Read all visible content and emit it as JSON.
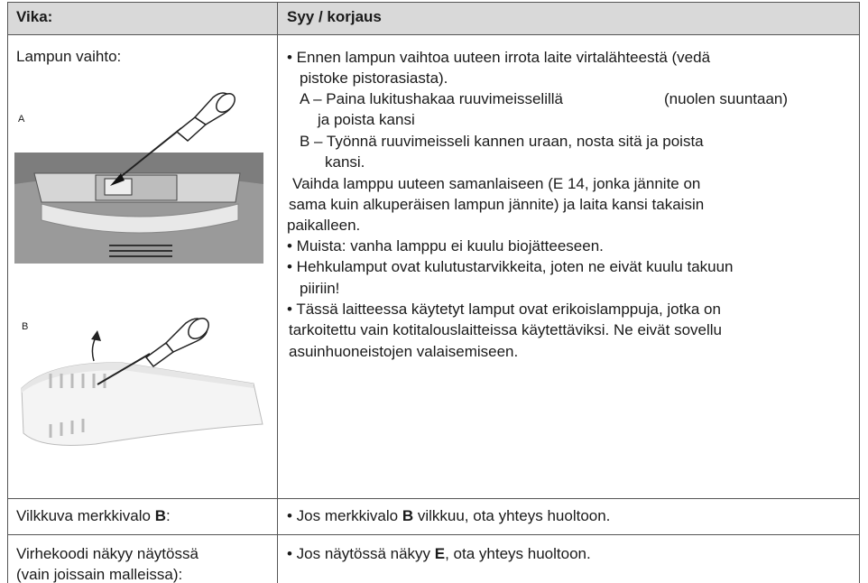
{
  "header": {
    "cells": [
      "Vika:",
      "Syy / korjaus"
    ]
  },
  "rows": [
    {
      "fault": "Lampun vaihto:",
      "figure_labels": [
        "A",
        "B"
      ],
      "lines": [
        "• Ennen lampun vaihtoa uuteen irrota laite virtalähteestä (vedä",
        "pistoke pistorasiasta).",
        "A – Paina lukitushakaa ruuvimeisselillä",
        "(nuolen suuntaan)",
        "ja poista kansi",
        "B – Työnnä ruuvimeisseli kannen uraan, nosta sitä ja poista",
        "kansi.",
        "Vaihda lamppu uuteen samanlaiseen (E 14, jonka jännite on",
        "sama kuin alkuperäisen lampun jännite) ja laita kansi takaisin",
        "paikalleen.",
        "• Muista: vanha lamppu ei kuulu biojätteeseen.",
        "• Hehkulamput ovat kulutustarvikkeita, joten ne eivät kuulu takuun",
        "piiriin!",
        "• Tässä laitteessa käytetyt lamput ovat erikoislamppuja, jotka on",
        "tarkoitettu vain kotitalouslaitteissa käytettäviksi. Ne eivät sovellu",
        "asuinhuoneistojen valaisemiseen."
      ]
    },
    {
      "fault": [
        "Vilkkuva merkkivalo ",
        "B",
        ":"
      ],
      "remedy": [
        "• Jos merkkivalo ",
        "B",
        " vilkkuu, ota yhteys huoltoon."
      ]
    },
    {
      "fault": [
        "Virhekoodi näkyy näytössä",
        "(vain joissain malleissa):"
      ],
      "remedy": [
        "• Jos näytössä näkyy ",
        "E",
        ", ota yhteys huoltoon."
      ]
    }
  ]
}
